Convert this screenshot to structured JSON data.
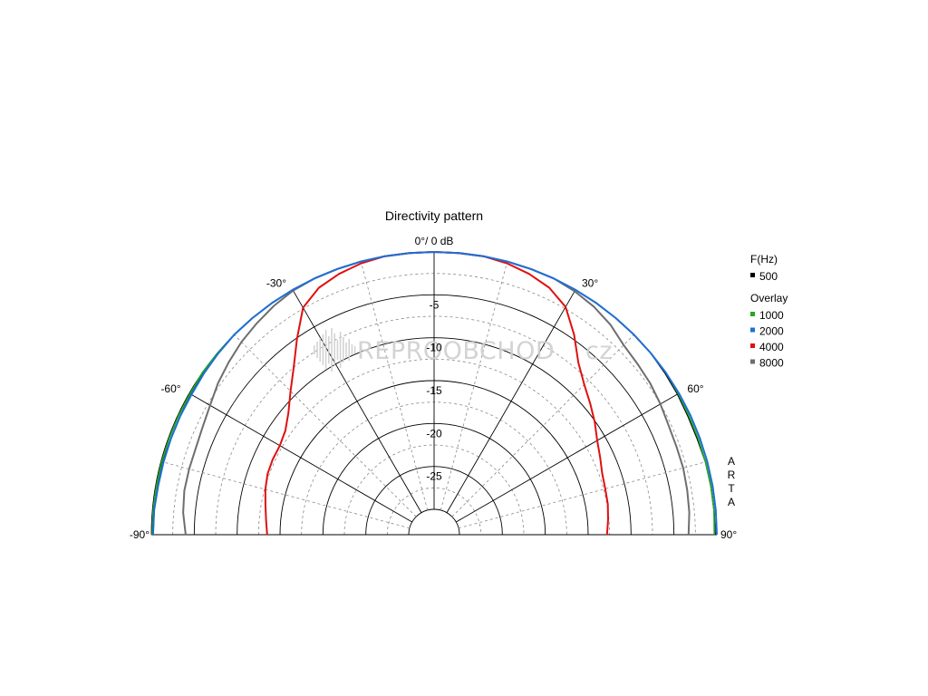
{
  "chart_data": {
    "type": "polar",
    "title": "Directivity pattern",
    "range_label": "0°/ 0 dB",
    "angle_range": [
      -90,
      90
    ],
    "angle_labels": [
      {
        "deg": -90,
        "text": "-90°"
      },
      {
        "deg": -60,
        "text": "-60°"
      },
      {
        "deg": -30,
        "text": "-30°"
      },
      {
        "deg": 30,
        "text": "30°"
      },
      {
        "deg": 60,
        "text": "60°"
      },
      {
        "deg": 90,
        "text": "90°"
      }
    ],
    "radial_range_db": [
      -30,
      0
    ],
    "radial_ticks": [
      {
        "db": -5,
        "text": "-5"
      },
      {
        "db": -10,
        "text": "-10"
      },
      {
        "db": -15,
        "text": "-15"
      },
      {
        "db": -20,
        "text": "-20"
      },
      {
        "db": -25,
        "text": "-25"
      }
    ],
    "grid": true,
    "legend": {
      "position": "right",
      "header": "F(Hz)",
      "overlay_label": "Overlay",
      "entries": [
        {
          "name": "500",
          "color": "#000000"
        },
        {
          "name": "1000",
          "color": "#22aa22"
        },
        {
          "name": "2000",
          "color": "#1f6fd6"
        },
        {
          "name": "4000",
          "color": "#e01010"
        },
        {
          "name": "8000",
          "color": "#6e6e6e"
        }
      ]
    },
    "series": [
      {
        "name": "500",
        "color": "#000000",
        "angles": [
          -90,
          -85,
          -80,
          -75,
          -70,
          -65,
          -60,
          -55,
          -50,
          -45,
          -40,
          -35,
          -30,
          -25,
          -20,
          -15,
          -10,
          -5,
          0,
          5,
          10,
          15,
          20,
          25,
          30,
          35,
          40,
          45,
          50,
          55,
          60,
          65,
          70,
          75,
          80,
          85,
          90
        ],
        "db": [
          -0.2,
          -0.2,
          -0.2,
          -0.2,
          -0.3,
          -0.3,
          -0.2,
          -0.1,
          -0.1,
          0,
          0,
          0,
          0,
          0,
          0,
          0,
          0,
          0,
          0,
          0,
          0,
          0,
          0,
          0,
          0,
          0,
          0,
          0,
          0,
          -0.1,
          -0.2,
          -0.3,
          -0.3,
          -0.2,
          -0.2,
          -0.2,
          -0.2
        ]
      },
      {
        "name": "1000",
        "color": "#22aa22",
        "angles": [
          -90,
          -85,
          -80,
          -75,
          -70,
          -65,
          -60,
          -55,
          -50,
          -45,
          -40,
          -35,
          -30,
          -25,
          -20,
          -15,
          -10,
          -5,
          0,
          5,
          10,
          15,
          20,
          25,
          30,
          35,
          40,
          45,
          50,
          55,
          60,
          65,
          70,
          75,
          80,
          85,
          90
        ],
        "db": [
          -0.1,
          -0.1,
          -0.1,
          -0.1,
          -0.1,
          -0.1,
          -0.1,
          0,
          0,
          0,
          0,
          0,
          0,
          0,
          0,
          0,
          0,
          0,
          0,
          0,
          0,
          0,
          0,
          0,
          0,
          0,
          0,
          0,
          0,
          0,
          -0.1,
          -0.2,
          -0.2,
          -0.2,
          -0.2,
          -0.2,
          -0.3
        ]
      },
      {
        "name": "2000",
        "color": "#1f6fd6",
        "angles": [
          -90,
          -85,
          -80,
          -75,
          -70,
          -65,
          -60,
          -55,
          -50,
          -45,
          -40,
          -35,
          -30,
          -25,
          -20,
          -15,
          -10,
          -5,
          0,
          5,
          10,
          15,
          20,
          25,
          30,
          35,
          40,
          45,
          50,
          55,
          60,
          65,
          70,
          75,
          80,
          85,
          90
        ],
        "db": [
          -0.2,
          -0.2,
          -0.3,
          -0.3,
          -0.3,
          -0.3,
          -0.3,
          -0.2,
          -0.1,
          0,
          0,
          0,
          0,
          0,
          0,
          0,
          0,
          0,
          0,
          0,
          0,
          0,
          0,
          0,
          0,
          0,
          0,
          0,
          0,
          0,
          0,
          0,
          0,
          0,
          0,
          0,
          0
        ]
      },
      {
        "name": "4000",
        "color": "#e01010",
        "angles": [
          -90,
          -85,
          -80,
          -75,
          -70,
          -65,
          -60,
          -55,
          -50,
          -45,
          -40,
          -35,
          -30,
          -25,
          -20,
          -15,
          -10,
          -5,
          0,
          5,
          10,
          15,
          20,
          25,
          30,
          35,
          40,
          45,
          50,
          55,
          60,
          65,
          70,
          75,
          80,
          85,
          90
        ],
        "db": [
          -13.5,
          -13.3,
          -13,
          -12.6,
          -12.3,
          -12.2,
          -12.2,
          -11.8,
          -10.8,
          -9.3,
          -7.5,
          -5.1,
          -2.4,
          -1.2,
          -0.6,
          -0.2,
          0,
          0,
          0,
          0,
          0,
          -0.2,
          -0.6,
          -1.2,
          -2.3,
          -4.5,
          -6.8,
          -8.2,
          -9.2,
          -10.1,
          -11,
          -11.6,
          -12.1,
          -12.3,
          -12.4,
          -12.6,
          -12.8
        ]
      },
      {
        "name": "8000",
        "color": "#6e6e6e",
        "angles": [
          -90,
          -85,
          -80,
          -75,
          -70,
          -65,
          -60,
          -55,
          -50,
          -45,
          -40,
          -35,
          -30,
          -25,
          -20,
          -15,
          -10,
          -5,
          0,
          5,
          10,
          15,
          20,
          25,
          30,
          35,
          40,
          45,
          50,
          55,
          60,
          65,
          70,
          75,
          80,
          85,
          90
        ],
        "db": [
          -4,
          -3.6,
          -3.4,
          -3.4,
          -3.4,
          -3.2,
          -2.8,
          -2.2,
          -1.7,
          -1.2,
          -0.8,
          -0.4,
          -0.1,
          0,
          0,
          0,
          0,
          0,
          0,
          0,
          0,
          0,
          0,
          0,
          -0.2,
          -0.5,
          -1,
          -1.7,
          -2,
          -2.2,
          -2.5,
          -2.8,
          -2.9,
          -2.9,
          -3,
          -3.1,
          -3.3
        ]
      }
    ],
    "side_text": [
      "A",
      "R",
      "T",
      "A"
    ]
  },
  "watermark": {
    "text": "REPROOBCHOD",
    "suffix": "cz"
  }
}
